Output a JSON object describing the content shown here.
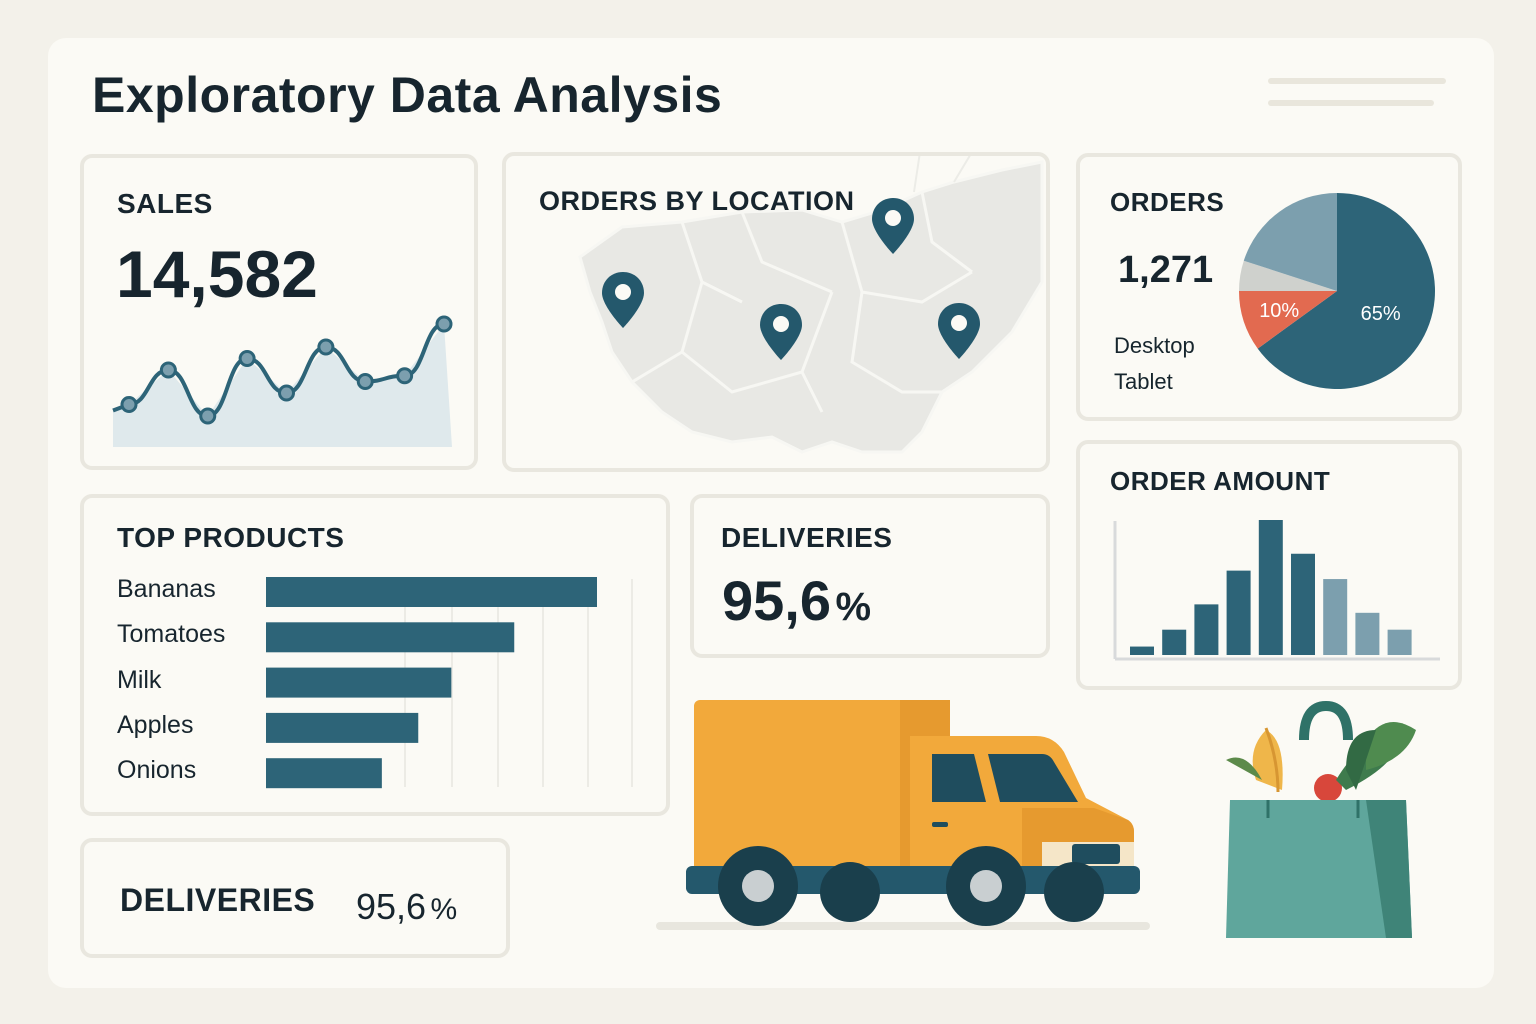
{
  "title": "Exploratory Data Analysis",
  "colors": {
    "accent": "#2d6478",
    "accent_light": "#7c9fae",
    "fill_light": "#dfe9ec",
    "orange": "#e26a50",
    "grey": "#cfd1cd",
    "truck": "#f2a93b"
  },
  "sales": {
    "title": "SALES",
    "value": "14,582",
    "chart_data": {
      "type": "line",
      "values": [
        3,
        6,
        2,
        7,
        4,
        8,
        5,
        5.5,
        10
      ]
    }
  },
  "map": {
    "title": "ORDERS BY LOCATION",
    "pin_count": 4
  },
  "orders": {
    "title": "ORDERS",
    "value": "1,271",
    "legend": [
      "Desktop",
      "Tablet"
    ],
    "chart_data": {
      "type": "pie",
      "slices": [
        {
          "value": 65,
          "label": "65%",
          "color": "#2d6478"
        },
        {
          "value": 10,
          "label": "10%",
          "color": "#e26a50"
        },
        {
          "value": 5,
          "label": "",
          "color": "#cfd1cd"
        },
        {
          "value": 20,
          "label": "",
          "color": "#7c9fae"
        }
      ]
    }
  },
  "top_products": {
    "title": "TOP PRODUCTS",
    "chart_data": {
      "type": "bar",
      "categories": [
        "Bananas",
        "Tomatoes",
        "Milk",
        "Apples",
        "Onions"
      ],
      "values": [
        100,
        75,
        56,
        46,
        35
      ]
    }
  },
  "deliveries": {
    "title": "DELIVERIES",
    "value": "95,6",
    "unit": "%"
  },
  "deliveries_small": {
    "title": "DELIVERIES",
    "value": "95,6",
    "unit": "%"
  },
  "order_amount": {
    "title": "ORDER AMOUNT",
    "chart_data": {
      "type": "bar",
      "values": [
        1,
        3,
        6,
        10,
        16,
        12,
        9,
        5,
        3
      ],
      "shades": [
        "dark",
        "dark",
        "dark",
        "dark",
        "dark",
        "dark",
        "light",
        "light",
        "light"
      ]
    }
  }
}
